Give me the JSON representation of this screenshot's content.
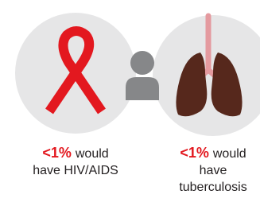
{
  "items": [
    {
      "stat": "<1%",
      "lines": [
        "would",
        "have HIV/AIDS"
      ]
    },
    {
      "stat": "<1%",
      "lines": [
        "would",
        "have",
        "tuberculosis"
      ]
    }
  ]
}
